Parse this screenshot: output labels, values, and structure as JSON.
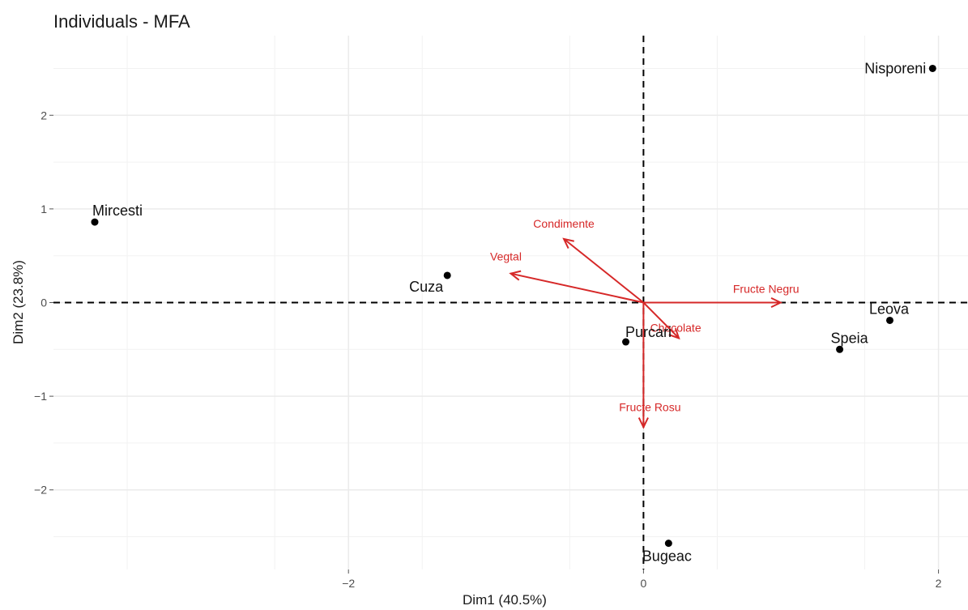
{
  "chart_data": {
    "type": "scatter",
    "title": "Individuals - MFA",
    "xlabel": "Dim1 (40.5%)",
    "ylabel": "Dim2 (23.8%)",
    "xlim": [
      -4.0,
      2.2
    ],
    "ylim": [
      -2.85,
      2.85
    ],
    "x_ticks": [
      -2,
      0,
      2
    ],
    "x_tick_labels": [
      "−2",
      "0",
      "2"
    ],
    "y_ticks": [
      -2,
      -1,
      0,
      1,
      2
    ],
    "y_tick_labels": [
      "−2",
      "−1",
      "0",
      "1",
      "2"
    ],
    "grid": true,
    "reference_lines": {
      "x": 0,
      "y": 0,
      "style": "dashed"
    },
    "points": [
      {
        "label": "Nisporeni",
        "x": 1.96,
        "y": 2.5
      },
      {
        "label": "Mircesti",
        "x": -3.72,
        "y": 0.86
      },
      {
        "label": "Cuza",
        "x": -1.33,
        "y": 0.29
      },
      {
        "label": "Leova",
        "x": 1.67,
        "y": -0.19
      },
      {
        "label": "Speia",
        "x": 1.33,
        "y": -0.5
      },
      {
        "label": "Purcari",
        "x": -0.12,
        "y": -0.42
      },
      {
        "label": "Bugeac",
        "x": 0.17,
        "y": -2.57
      }
    ],
    "variable_arrows": [
      {
        "label": "Condimente",
        "x": -0.54,
        "y": 0.68
      },
      {
        "label": "Vegtal",
        "x": -0.9,
        "y": 0.31
      },
      {
        "label": "Fructe Negru",
        "x": 0.93,
        "y": 0.0
      },
      {
        "label": "Chocolate",
        "x": 0.24,
        "y": -0.38
      },
      {
        "label": "Fructe Rosu",
        "x": 0.0,
        "y": -1.33
      }
    ],
    "colors": {
      "points": "#000000",
      "arrows": "#d62828",
      "grid": "#ebebeb",
      "reference": "#000000"
    }
  }
}
